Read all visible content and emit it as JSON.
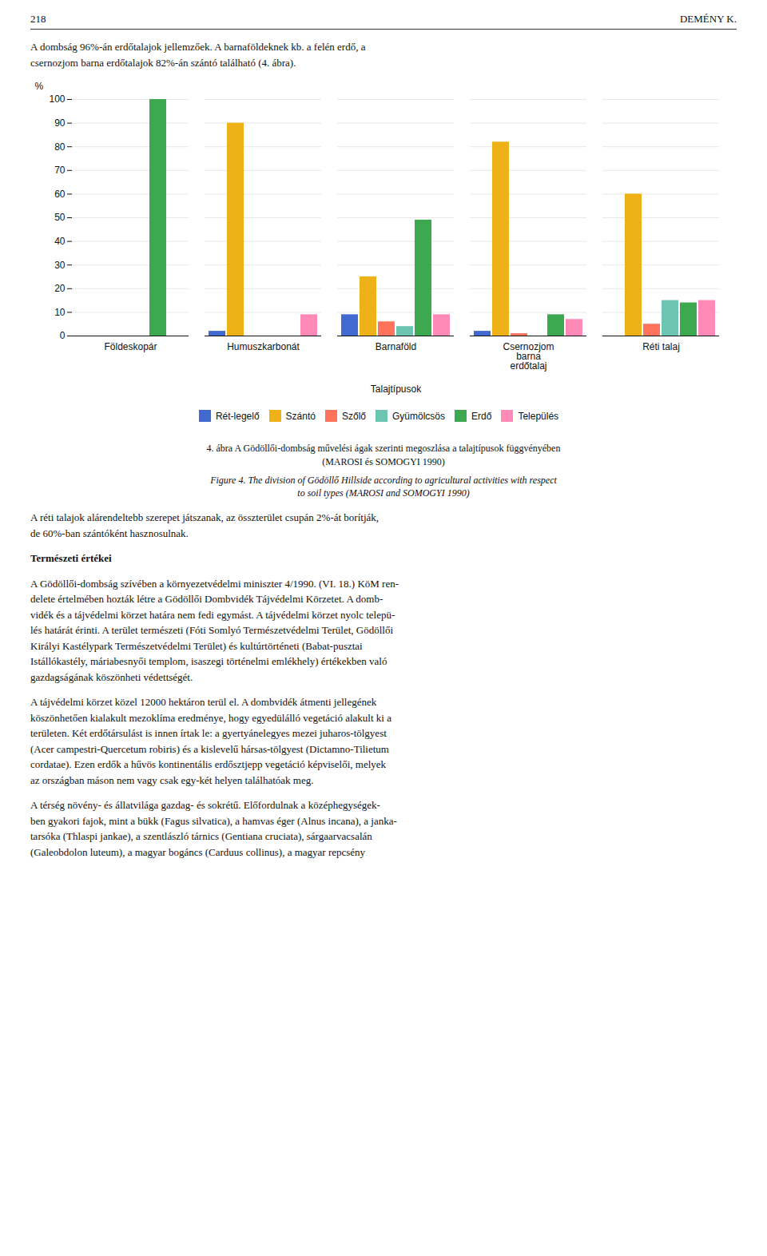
{
  "header_left": "218",
  "header_right": "DEMÉNY K.",
  "text_before": [
    {
      "text": "A dombság 96%-án erdőtalajok jellemzőek. A barnaföldeknek kb. a felén erdő, a\ncsernozjom barna erdőtalajok 82%-án szántó található (4. ábra).",
      "style": "normal"
    }
  ],
  "caption": [
    {
      "text": "4. ábra A Gödöllői-dombság művelési ágak szerinti megoszlása a talajtípusok függvényében\n(MAROSI és SOMOGYI 1990)",
      "style": "normal"
    },
    {
      "text": "Figure 4. The division of Gödöllő Hillside according to agricultural activities with respect\nto soil types (MAROSI and SOMOGYI 1990)",
      "style": "italic"
    }
  ],
  "text_after": [
    {
      "text": "A réti talajok alárendeltebb szerepet játszanak, az összterület csupán 2%-át borítják,\nde 60%-ban szántóként hasznosulnak.",
      "style": "normal"
    },
    {
      "text": "Természeti értékei",
      "style": "bold"
    },
    {
      "text": "A Gödöllői-dombság szívében a környezetvédelmi miniszter 4/1990. (VI. 18.) KöM ren-\ndelete értelmében hozták létre a Gödöllői Dombvidék Tájvédelmi Körzetet. A domb-\nvidék és a tájvédelmi körzet határa nem fedi egymást. A tájvédelmi körzet nyolc telepü-\nlés határát érinti. A terület természeti (Fóti Somlyó Természetvédelmi Terület, Gödöllői\nKirályi Kastélypark Természetvédelmi Terület) és kultúrtörténeti (Babat-pusztai\nIstállókastély, máriabesnyői templom, isaszegi történelmi emlékhely) értékekben való\ngazdagságának köszönheti védettségét.",
      "style": "normal"
    },
    {
      "text": "A tájvédelmi körzet közel 12000 hektáron terül el. A dombvidék átmenti jellegének\nköszönhetően kialakult mezoklíma eredménye, hogy egyedülálló vegetáció alakult ki a\nterületen. Két erdőtársulást is innen írtak le: a gyertyánelegyes mezei juharos-tölgyest\n(Acer campestri-Quercetum robiris) és a kislevelű hársas-tölgyest (Dictamno-Tilietum\ncordatae). Ezen erdők a hűvös kontinentális erdősztjepp vegetáció képviselői, melyek\naz országban máson nem vagy csak egy-két helyen találhatóak meg.",
      "style": "normal"
    },
    {
      "text": "A térség növény- és állatvilága gazdag- és sokrétű. Előfordulnak a középhegységek-\nben gyakori fajok, mint a bükk (Fagus silvatica), a hamvas éger (Alnus incana), a janka-\ntarsóka (Thlaspi jankae), a szentlászló tárnics (Gentiana cruciata), sárgaarvacsalán\n(Galeobdolon luteum), a magyar bogáncs (Carduus collinus), a magyar repcsény",
      "style": "normal"
    }
  ],
  "chart_data": {
    "type": "bar",
    "categories": [
      "Földeskopár",
      "Humuszkarbonát",
      "Barnaföld",
      "Csernozjom\nbarna\nerdőtalaj",
      "Réti talaj"
    ],
    "series": [
      {
        "name": "Rét-legelő",
        "values": [
          0,
          2,
          9,
          2,
          0
        ]
      },
      {
        "name": "Szántó",
        "values": [
          0,
          90,
          25,
          82,
          60
        ]
      },
      {
        "name": "Szőlő",
        "values": [
          0,
          0,
          6,
          1,
          5
        ]
      },
      {
        "name": "Gyümölcsös",
        "values": [
          0,
          0,
          4,
          0,
          15
        ]
      },
      {
        "name": "Erdő",
        "values": [
          100,
          0,
          49,
          9,
          14
        ]
      },
      {
        "name": "Település",
        "values": [
          0,
          9,
          9,
          7,
          15
        ]
      }
    ],
    "xlabel": "Talajtípusok",
    "ylabel": "%",
    "ylim": [
      0,
      100
    ],
    "yticks": [
      0,
      10,
      20,
      30,
      40,
      50,
      60,
      70,
      80,
      90,
      100
    ],
    "grid": true,
    "legend": "bottom"
  }
}
